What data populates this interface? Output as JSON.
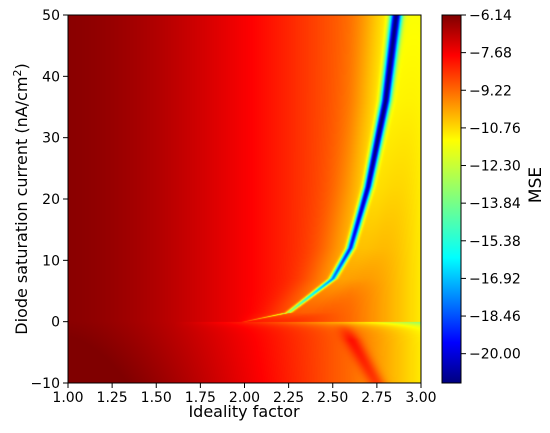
{
  "chart_data": {
    "type": "heatmap",
    "title": "",
    "xlabel": "Ideality factor",
    "ylabel": "Diode saturation current (nA/cm",
    "ylabel_sup": "2",
    "ylabel_close": ")",
    "xlim": [
      1.0,
      3.0
    ],
    "ylim": [
      -10,
      50
    ],
    "xticks": [
      1.0,
      1.25,
      1.5,
      1.75,
      2.0,
      2.25,
      2.5,
      2.75,
      3.0
    ],
    "xtick_labels": [
      "1.00",
      "1.25",
      "1.50",
      "1.75",
      "2.00",
      "2.25",
      "2.50",
      "2.75",
      "3.00"
    ],
    "yticks": [
      -10,
      0,
      10,
      20,
      30,
      40,
      50
    ],
    "ytick_labels": [
      "−10",
      "0",
      "10",
      "20",
      "30",
      "40",
      "50"
    ],
    "colorbar": {
      "label": "MSE",
      "colormap": "jet",
      "range": [
        -21.2,
        -6.14
      ],
      "ticks": [
        -6.14,
        -7.68,
        -9.22,
        -10.76,
        -12.3,
        -13.84,
        -15.38,
        -16.92,
        -18.46,
        -20.0
      ],
      "tick_labels": [
        "−6.14",
        "−7.68",
        "−9.22",
        "−10.76",
        "−12.30",
        "−13.84",
        "−15.38",
        "−16.92",
        "−18.46",
        "−20.00"
      ]
    },
    "minimum_valley": {
      "x": [
        2.0,
        2.25,
        2.5,
        2.6,
        2.7,
        2.8,
        2.86
      ],
      "y": [
        0,
        1.5,
        7,
        12,
        22,
        36,
        50
      ],
      "min_value": -21.2
    },
    "grid": false
  }
}
